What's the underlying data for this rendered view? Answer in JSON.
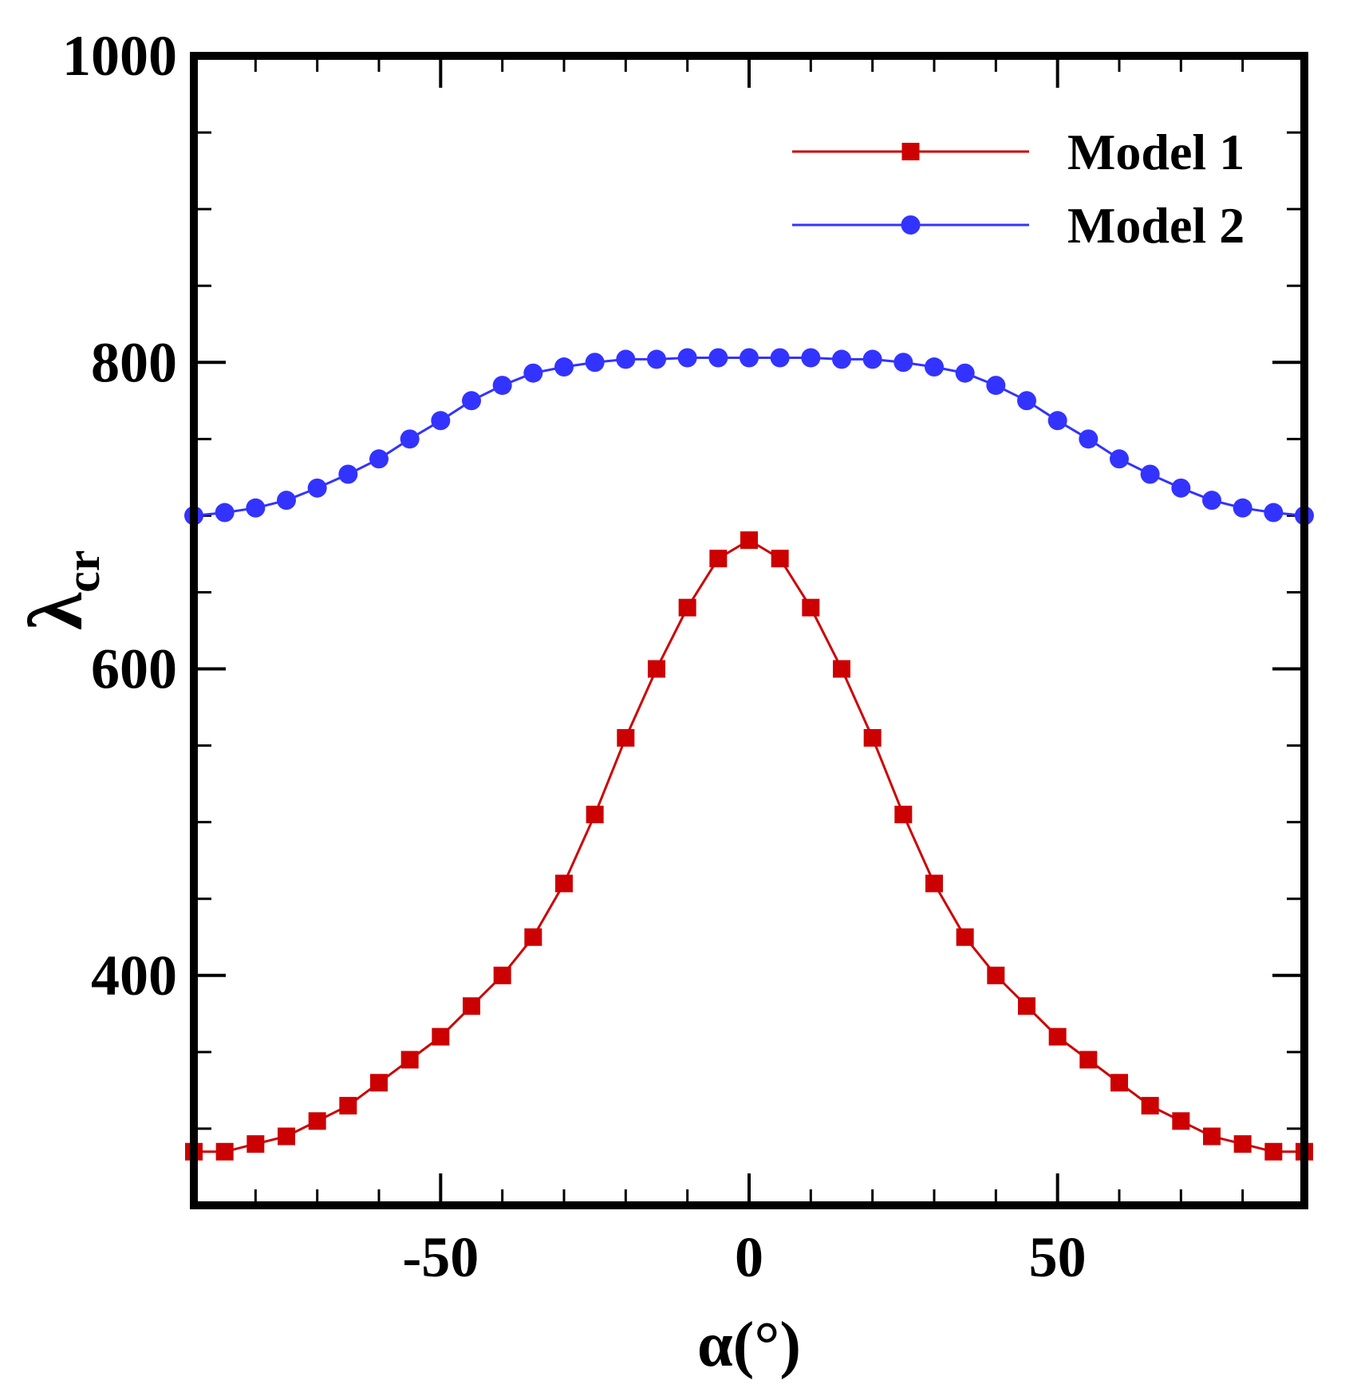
{
  "chart_data": {
    "type": "line",
    "title": "",
    "xlabel": "α(°)",
    "ylabel": {
      "main": "λ",
      "subscript": "cr"
    },
    "xlim": [
      -90,
      90
    ],
    "ylim": [
      250,
      1000
    ],
    "x_ticks": [
      -50,
      0,
      50
    ],
    "x_tick_labels": [
      "-50",
      "0",
      "50"
    ],
    "y_ticks": [
      400,
      600,
      800,
      1000
    ],
    "y_tick_labels": [
      "400",
      "600",
      "800",
      "1000"
    ],
    "y_minor_step": 50,
    "x_minor_step": 10,
    "grid": false,
    "legend_position": "top-right",
    "x": [
      -90,
      -85,
      -80,
      -75,
      -70,
      -65,
      -60,
      -55,
      -50,
      -45,
      -40,
      -35,
      -30,
      -25,
      -20,
      -15,
      -10,
      -5,
      0,
      5,
      10,
      15,
      20,
      25,
      30,
      35,
      40,
      45,
      50,
      55,
      60,
      65,
      70,
      75,
      80,
      85,
      90
    ],
    "series": [
      {
        "name": "Model 1",
        "color": "#cc0000",
        "marker": "square",
        "values": [
          285,
          285,
          290,
          295,
          305,
          315,
          330,
          345,
          360,
          380,
          400,
          425,
          460,
          505,
          555,
          600,
          640,
          672,
          684,
          672,
          640,
          600,
          555,
          505,
          460,
          425,
          400,
          380,
          360,
          345,
          330,
          315,
          305,
          295,
          290,
          285,
          285
        ]
      },
      {
        "name": "Model 2",
        "color": "#3333ff",
        "marker": "circle",
        "values": [
          700,
          702,
          705,
          710,
          718,
          727,
          737,
          750,
          762,
          775,
          785,
          793,
          797,
          800,
          802,
          802,
          803,
          803,
          803,
          803,
          803,
          802,
          802,
          800,
          797,
          793,
          785,
          775,
          762,
          750,
          737,
          727,
          718,
          710,
          705,
          702,
          700
        ]
      }
    ]
  }
}
